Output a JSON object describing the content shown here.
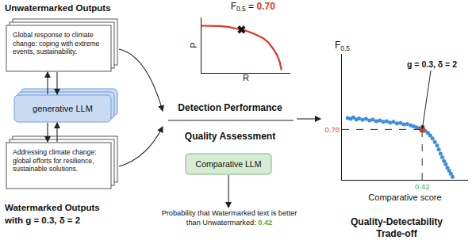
{
  "left": {
    "top_title": "Unwatermarked Outputs",
    "unwatermarked_text": "Global response to climate change: coping with extreme events, sustainability.",
    "model": "generative LLM",
    "watermarked_text": "Addressing climate change: global efforts for resilience, sustainable solutions.",
    "bottom_title": "Watermarked Outputs",
    "bottom_subtitle": "with g = 0.3, δ = 2"
  },
  "middle": {
    "detection": "Detection Performance",
    "quality": "Quality Assessment",
    "judge": "Comparative LLM",
    "probability_text": "Probability that Watermarked text is better than Unwatermarked:",
    "probability": 0.42
  },
  "right_title": [
    "Quality-Detectability",
    "Trade-off"
  ],
  "chart_data": [
    {
      "type": "line",
      "title": {
        "text": "F",
        "subscript": "0.5",
        "suffix": " = ",
        "value": 0.7,
        "value_label": "0.70"
      },
      "x_label": "R",
      "y_label": "P",
      "x": [
        0,
        0.1,
        0.2,
        0.3,
        0.4,
        0.45,
        0.5,
        0.6,
        0.7,
        0.75,
        0.8,
        0.85,
        0.88,
        0.9
      ],
      "values": [
        0.85,
        0.85,
        0.845,
        0.83,
        0.8,
        0.78,
        0.76,
        0.7,
        0.62,
        0.55,
        0.45,
        0.32,
        0.2,
        0.05
      ],
      "color": "#e0352b",
      "xlim": [
        0,
        1
      ],
      "ylim": [
        0,
        1
      ],
      "tick_labels": false,
      "highlight": {
        "x": 0.45,
        "y": 0.78,
        "marker": "x"
      }
    },
    {
      "type": "scatter",
      "x_label": "Comparative score",
      "y_label": {
        "text": "F",
        "subscript": "0.5"
      },
      "x": [
        0.29,
        0.295,
        0.3,
        0.305,
        0.31,
        0.316,
        0.322,
        0.328,
        0.334,
        0.34,
        0.346,
        0.352,
        0.358,
        0.364,
        0.37,
        0.376,
        0.382,
        0.388,
        0.394,
        0.4,
        0.405,
        0.41,
        0.415,
        0.425,
        0.43,
        0.434,
        0.438,
        0.442,
        0.446,
        0.449,
        0.452,
        0.455,
        0.458,
        0.461,
        0.464,
        0.467,
        0.47,
        0.473
      ],
      "values": [
        0.745,
        0.742,
        0.748,
        0.74,
        0.744,
        0.738,
        0.742,
        0.736,
        0.739,
        0.733,
        0.736,
        0.73,
        0.733,
        0.727,
        0.73,
        0.724,
        0.726,
        0.72,
        0.722,
        0.716,
        0.712,
        0.708,
        0.705,
        0.694,
        0.686,
        0.676,
        0.664,
        0.65,
        0.636,
        0.62,
        0.604,
        0.59,
        0.575,
        0.562,
        0.548,
        0.536,
        0.524,
        0.512
      ],
      "color": "#3d8ee0",
      "xlim": [
        0.28,
        0.5
      ],
      "ylim": [
        0.5,
        1.0
      ],
      "xticks": [
        0.42
      ],
      "yticks": [
        {
          "value": 0.7,
          "label": "0.70"
        }
      ],
      "highlight": {
        "x": 0.42,
        "y": 0.7,
        "label": "g = 0.3, δ = 2",
        "color": "#e8412a"
      }
    }
  ]
}
